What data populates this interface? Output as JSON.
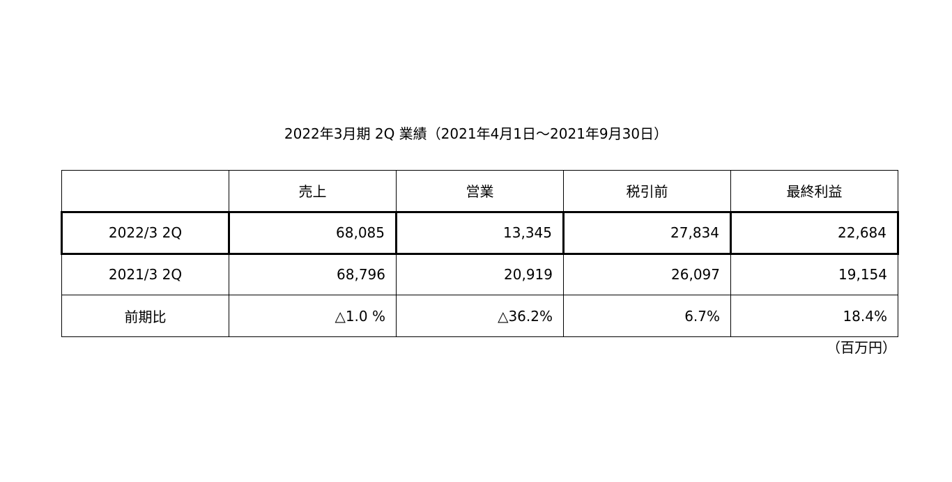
{
  "document": {
    "title": "2022年3月期 2Q 業績（2021年4月1日～2021年9月30日）",
    "unit_note": "（百万円）"
  },
  "table": {
    "columns": [
      "",
      "売上",
      "営業",
      "税引前",
      "最終利益"
    ],
    "rows": [
      {
        "label": "2022/3 2Q",
        "values": [
          "68,085",
          "13,345",
          "27,834",
          "22,684"
        ]
      },
      {
        "label": "2021/3 2Q",
        "values": [
          "68,796",
          "20,919",
          "26,097",
          "19,154"
        ]
      },
      {
        "label": "前期比",
        "values": [
          "△1.0 %",
          "△36.2%",
          "6.7%",
          "18.4%"
        ]
      }
    ]
  }
}
